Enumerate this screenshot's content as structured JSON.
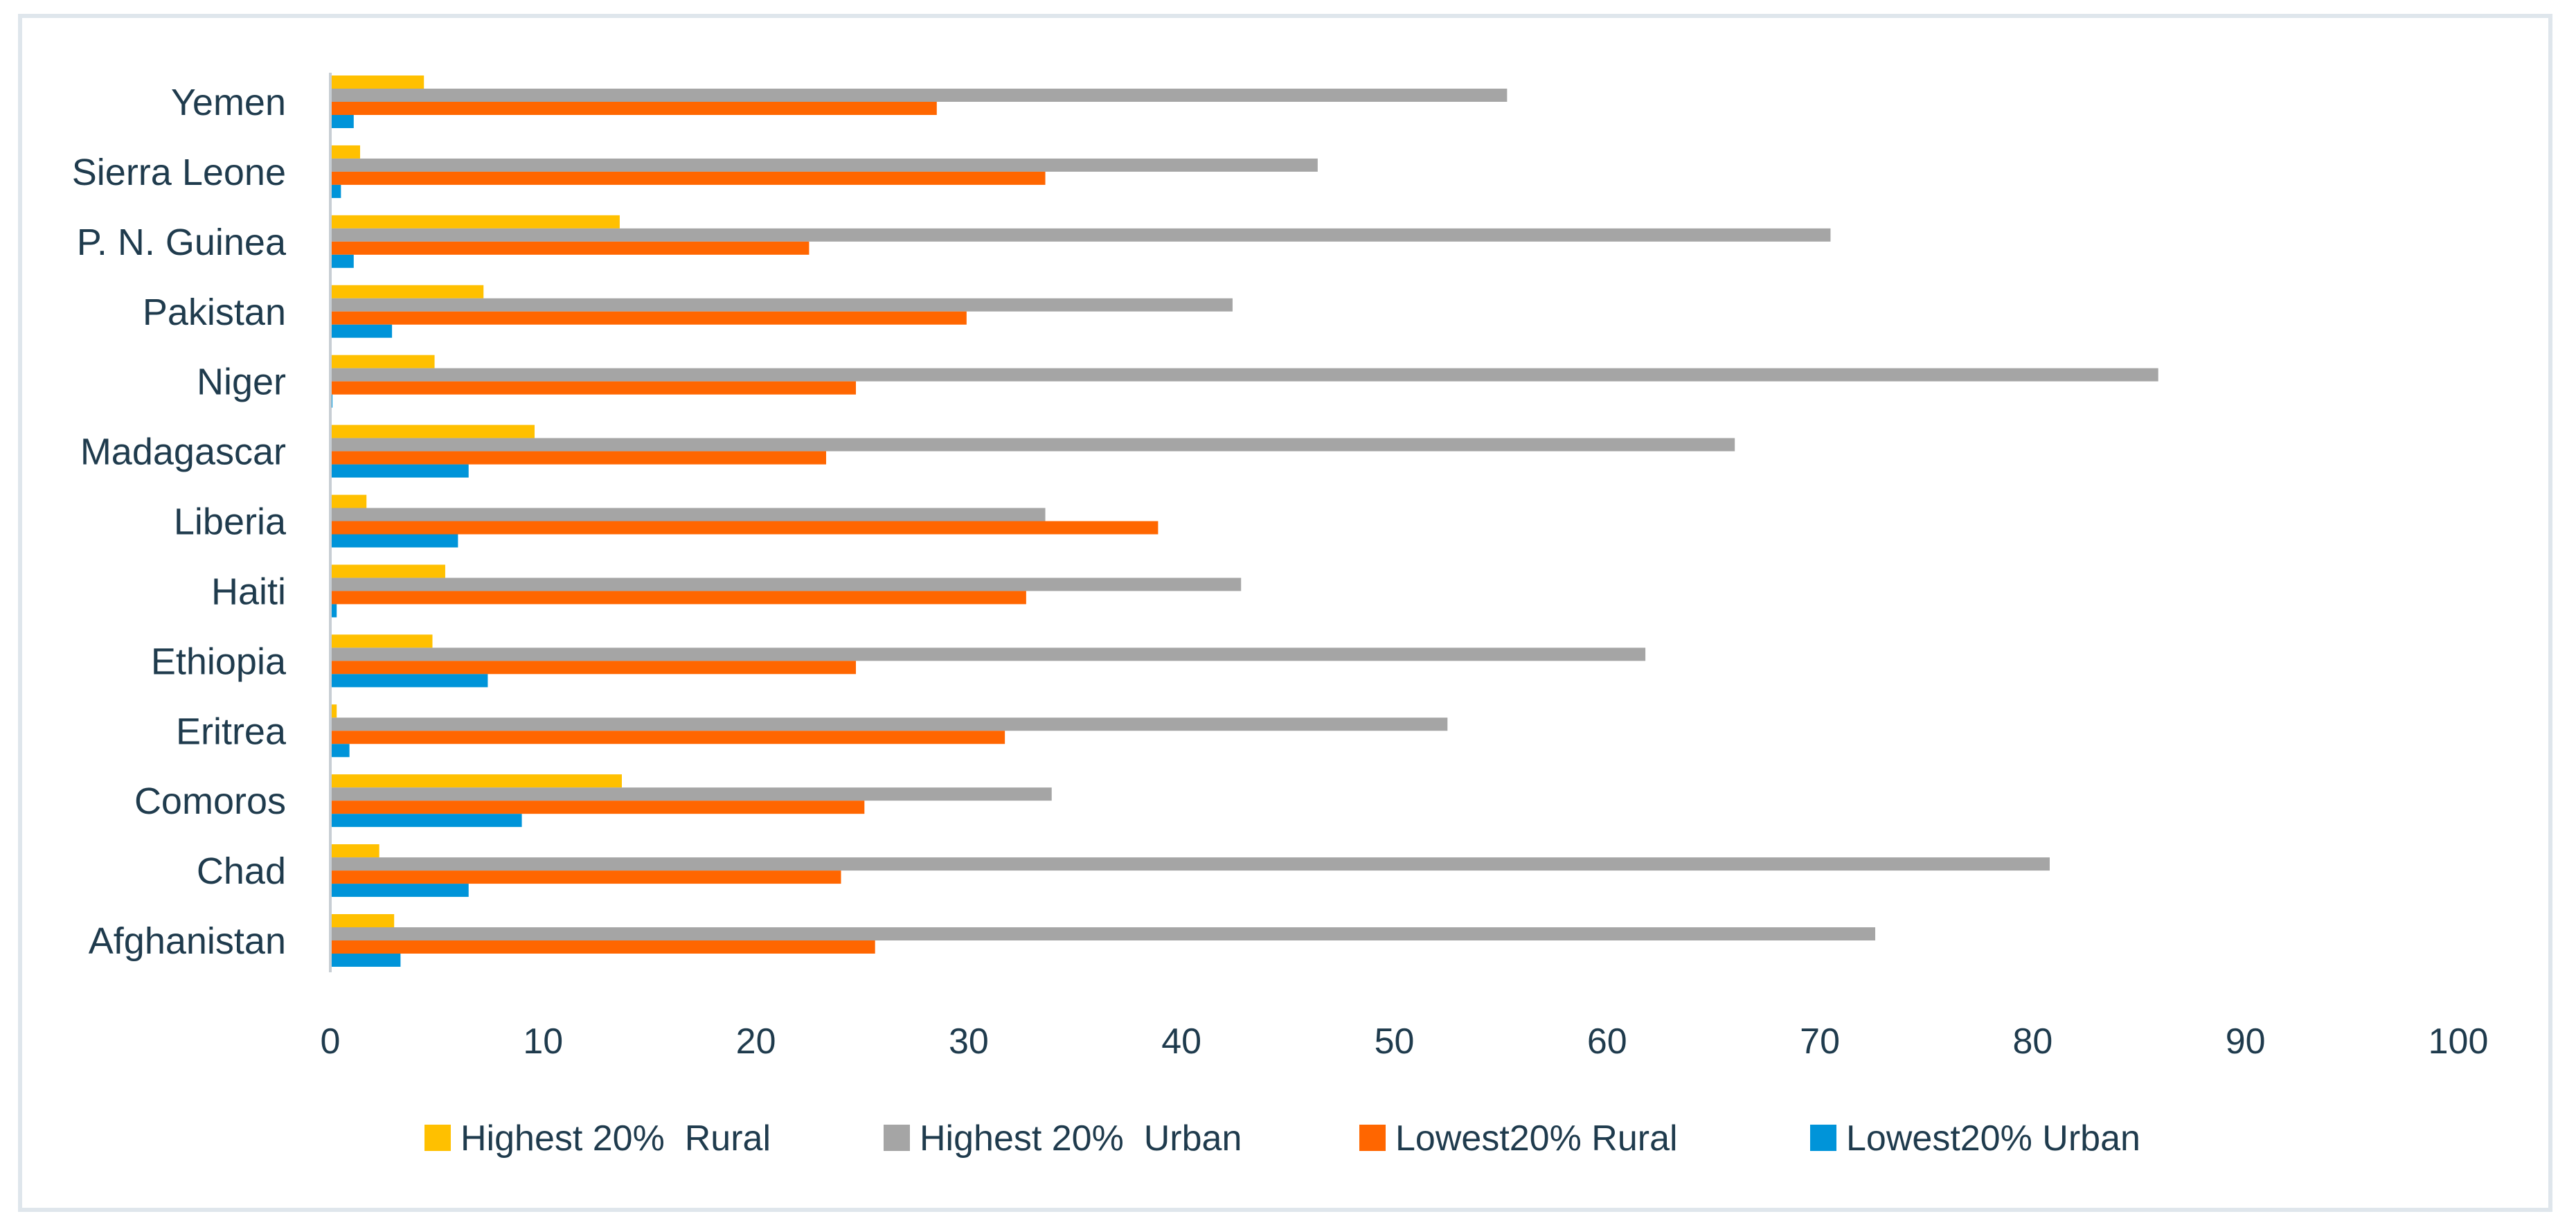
{
  "colors": {
    "highest_rural": "#ffc000",
    "highest_urban": "#a5a5a5",
    "lowest_rural": "#ff6600",
    "lowest_urban": "#0094d9",
    "text": "#1f3b4d",
    "axis": "#c8ced4",
    "frame": "#dfe6ec"
  },
  "chart_data": {
    "type": "bar",
    "orientation": "horizontal",
    "title": "",
    "xlabel": "",
    "ylabel": "",
    "xlim": [
      0,
      100
    ],
    "x_ticks": [
      "0",
      "10",
      "20",
      "30",
      "40",
      "50",
      "60",
      "70",
      "80",
      "90",
      "100"
    ],
    "grid": false,
    "legend_position": "bottom",
    "categories": [
      "Afghanistan",
      "Chad",
      "Comoros",
      "Eritrea",
      "Ethiopia",
      "Haiti",
      "Liberia",
      "Madagascar",
      "Niger",
      "Pakistan",
      "P. N. Guinea",
      "Sierra Leone",
      "Yemen"
    ],
    "series": [
      {
        "name": "Highest 20%  Rural",
        "color_key": "highest_rural",
        "values": [
          3.0,
          2.3,
          13.7,
          0.3,
          4.8,
          5.4,
          1.7,
          9.6,
          4.9,
          7.2,
          13.6,
          1.4,
          4.4
        ]
      },
      {
        "name": "Highest 20%  Urban",
        "color_key": "highest_urban",
        "values": [
          72.6,
          80.8,
          33.9,
          52.5,
          61.8,
          42.8,
          33.6,
          66.0,
          85.9,
          42.4,
          70.5,
          46.4,
          55.3
        ]
      },
      {
        "name": "Lowest20% Rural",
        "color_key": "lowest_rural",
        "values": [
          25.6,
          24.0,
          25.1,
          31.7,
          24.7,
          32.7,
          38.9,
          23.3,
          24.7,
          29.9,
          22.5,
          33.6,
          28.5
        ]
      },
      {
        "name": "Lowest20% Urban",
        "color_key": "lowest_urban",
        "values": [
          3.3,
          6.5,
          9.0,
          0.9,
          7.4,
          0.3,
          6.0,
          6.5,
          0.1,
          2.9,
          1.1,
          0.5,
          1.1
        ]
      }
    ]
  }
}
